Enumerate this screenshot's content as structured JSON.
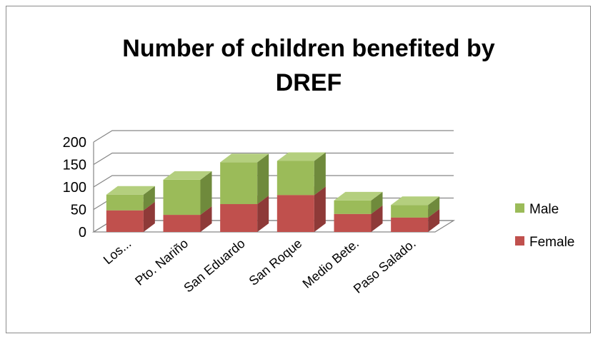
{
  "chart_data": {
    "type": "bar",
    "stacked": true,
    "three_d": true,
    "title": "Number of children benefited by DREF",
    "title_lines": [
      "Number of children benefited by",
      "DREF"
    ],
    "categories": [
      "Los...",
      "Pto. Nariño",
      "San Eduardo",
      "San Roque",
      "Medio Bete.",
      "Paso Salado."
    ],
    "series": [
      {
        "name": "Female",
        "values": [
          48,
          38,
          62,
          82,
          40,
          32
        ]
      },
      {
        "name": "Male",
        "values": [
          35,
          78,
          93,
          76,
          30,
          28
        ]
      }
    ],
    "ylim": [
      0,
      200
    ],
    "yticks": [
      "0",
      "50",
      "100",
      "150",
      "200"
    ],
    "grid": true,
    "legend_position": "right",
    "colors": {
      "Female": {
        "front": "#c0504d",
        "top": "#d27a78",
        "side": "#8e3a38"
      },
      "Male": {
        "front": "#9bbb59",
        "top": "#b4cf7e",
        "side": "#6f8a3c"
      },
      "grid": "#868686",
      "floor": "#868686"
    }
  }
}
